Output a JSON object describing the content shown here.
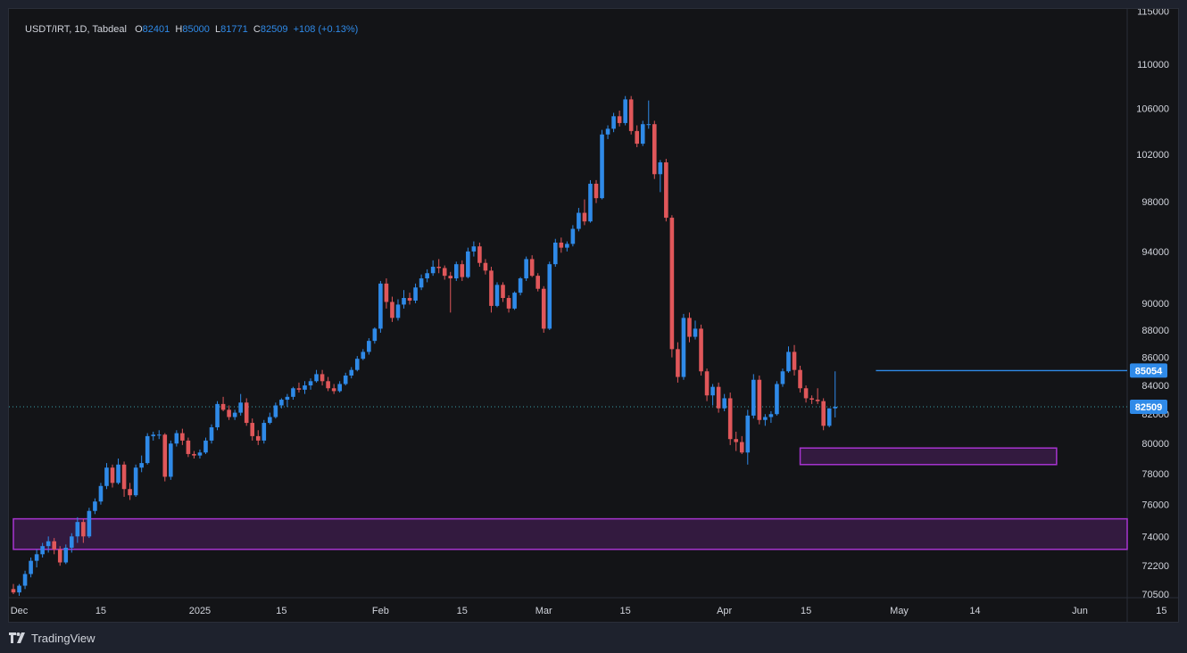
{
  "legend": {
    "symbol": "USDT/IRT, 1D, Tabdeal",
    "open_label": "O",
    "open": "82401",
    "high_label": "H",
    "high": "85000",
    "low_label": "L",
    "low": "81771",
    "close_label": "C",
    "close": "82509",
    "change": "+108 (+0.13%)"
  },
  "brand": {
    "name": "TradingView"
  },
  "colors": {
    "up": "#2f8ae8",
    "down": "#e0575a",
    "zone": "#a734d0",
    "line": "#2f8ae8",
    "background": "#131417"
  },
  "chart_data": {
    "type": "candlestick",
    "y_axis": {
      "scale": "log",
      "ticks": [
        70500,
        72200,
        74000,
        76000,
        78000,
        80000,
        82000,
        84000,
        86000,
        88000,
        90000,
        94000,
        98000,
        102000,
        106000,
        110000,
        115000
      ]
    },
    "x_axis": {
      "labels": [
        "Dec",
        "15",
        "2025",
        "15",
        "Feb",
        "15",
        "Mar",
        "15",
        "Apr",
        "15",
        "May",
        "14",
        "Jun",
        "15"
      ]
    },
    "price_labels": [
      {
        "value": 85054,
        "text": "85054"
      },
      {
        "value": 82509,
        "text": "82509"
      }
    ],
    "horizontal_line": {
      "value": 85054,
      "from_date": "2025-04-27"
    },
    "last_price_line": {
      "value": 82509
    },
    "zones": [
      {
        "name": "lower-demand-zone",
        "low": 73200,
        "high": 75100,
        "from_date": "2024-11-30",
        "to_date": "2025-06-25"
      },
      {
        "name": "upper-demand-zone",
        "low": 78600,
        "high": 79700,
        "from_date": "2025-04-14",
        "to_date": "2025-05-28"
      }
    ],
    "series": [
      {
        "start_date": "2024-11-30",
        "interval": "1D",
        "ohlc": [
          [
            70800,
            71100,
            70500,
            70600
          ],
          [
            70600,
            71100,
            70400,
            71000
          ],
          [
            71000,
            71900,
            70800,
            71700
          ],
          [
            71700,
            72700,
            71500,
            72500
          ],
          [
            72500,
            73200,
            72100,
            72900
          ],
          [
            72900,
            73600,
            72700,
            73400
          ],
          [
            73400,
            74000,
            73000,
            73700
          ],
          [
            73700,
            73900,
            72900,
            73200
          ],
          [
            73200,
            73400,
            72200,
            72400
          ],
          [
            72400,
            73500,
            72300,
            73300
          ],
          [
            73300,
            74200,
            73000,
            74000
          ],
          [
            74000,
            75200,
            73600,
            74900
          ],
          [
            74900,
            75100,
            73600,
            74000
          ],
          [
            74000,
            75800,
            73900,
            75600
          ],
          [
            75600,
            76400,
            75400,
            76200
          ],
          [
            76200,
            77400,
            76000,
            77200
          ],
          [
            77200,
            78700,
            77000,
            78400
          ],
          [
            78400,
            78600,
            77100,
            77400
          ],
          [
            77400,
            79000,
            77300,
            78600
          ],
          [
            78600,
            78800,
            76500,
            77000
          ],
          [
            77000,
            77400,
            76300,
            76600
          ],
          [
            76600,
            78600,
            76500,
            78400
          ],
          [
            78400,
            79200,
            78100,
            78700
          ],
          [
            78700,
            80700,
            78600,
            80500
          ],
          [
            80500,
            80800,
            80200,
            80600
          ],
          [
            80600,
            80900,
            80300,
            80600
          ],
          [
            80600,
            80700,
            77500,
            77800
          ],
          [
            77800,
            80200,
            77600,
            80000
          ],
          [
            80000,
            80900,
            79800,
            80700
          ],
          [
            80700,
            81000,
            79900,
            80200
          ],
          [
            80200,
            80400,
            79100,
            79300
          ],
          [
            79300,
            79500,
            79000,
            79200
          ],
          [
            79200,
            79600,
            79000,
            79400
          ],
          [
            79400,
            80400,
            79300,
            80200
          ],
          [
            80200,
            81300,
            80000,
            81100
          ],
          [
            81100,
            82900,
            80900,
            82700
          ],
          [
            82700,
            83200,
            82200,
            82300
          ],
          [
            82300,
            82600,
            81600,
            81800
          ],
          [
            81800,
            82300,
            81600,
            82100
          ],
          [
            82100,
            83400,
            81900,
            82800
          ],
          [
            82800,
            83100,
            81200,
            81400
          ],
          [
            81400,
            81700,
            80200,
            80500
          ],
          [
            80500,
            80900,
            79900,
            80200
          ],
          [
            80200,
            81600,
            80000,
            81400
          ],
          [
            81400,
            82100,
            81300,
            81800
          ],
          [
            81800,
            82800,
            81700,
            82600
          ],
          [
            82600,
            83100,
            82400,
            83000
          ],
          [
            83000,
            83400,
            82500,
            83200
          ],
          [
            83200,
            83900,
            83000,
            83800
          ],
          [
            83800,
            84200,
            83500,
            83700
          ],
          [
            83700,
            84300,
            83400,
            84000
          ],
          [
            84000,
            84500,
            83700,
            84300
          ],
          [
            84300,
            85100,
            84200,
            84800
          ],
          [
            84800,
            85100,
            84000,
            84300
          ],
          [
            84300,
            84600,
            83600,
            83800
          ],
          [
            83800,
            84100,
            83400,
            83600
          ],
          [
            83600,
            84300,
            83500,
            84100
          ],
          [
            84100,
            84900,
            84000,
            84700
          ],
          [
            84700,
            85300,
            84500,
            85100
          ],
          [
            85100,
            86100,
            85000,
            85900
          ],
          [
            85900,
            86600,
            85800,
            86400
          ],
          [
            86400,
            87400,
            86200,
            87200
          ],
          [
            87200,
            88200,
            87000,
            88100
          ],
          [
            88100,
            91700,
            87800,
            91500
          ],
          [
            91500,
            91900,
            89600,
            90100
          ],
          [
            90100,
            90500,
            88600,
            88900
          ],
          [
            88900,
            90300,
            88700,
            89900
          ],
          [
            89900,
            91000,
            89600,
            90400
          ],
          [
            90400,
            90800,
            89900,
            90200
          ],
          [
            90200,
            91500,
            90000,
            91200
          ],
          [
            91200,
            92200,
            91000,
            91900
          ],
          [
            91900,
            92600,
            91600,
            92300
          ],
          [
            92300,
            93300,
            92100,
            92800
          ],
          [
            92800,
            93400,
            92300,
            92700
          ],
          [
            92700,
            92900,
            91800,
            92100
          ],
          [
            92100,
            92400,
            89300,
            91900
          ],
          [
            91900,
            93200,
            91700,
            93000
          ],
          [
            93000,
            93300,
            91700,
            92000
          ],
          [
            92000,
            94300,
            91900,
            94000
          ],
          [
            94000,
            94800,
            93600,
            94400
          ],
          [
            94400,
            94700,
            92800,
            93100
          ],
          [
            93100,
            93400,
            92200,
            92500
          ],
          [
            92500,
            92800,
            89300,
            89800
          ],
          [
            89800,
            91600,
            89700,
            91400
          ],
          [
            91400,
            91600,
            90100,
            90400
          ],
          [
            90400,
            90600,
            89300,
            89600
          ],
          [
            89600,
            90900,
            89500,
            90800
          ],
          [
            90800,
            92000,
            90600,
            91900
          ],
          [
            91900,
            93600,
            91700,
            93400
          ],
          [
            93400,
            93700,
            92000,
            92100
          ],
          [
            92100,
            92300,
            90900,
            91100
          ],
          [
            91100,
            91300,
            87800,
            88100
          ],
          [
            88100,
            93200,
            88000,
            93000
          ],
          [
            93000,
            95000,
            92800,
            94700
          ],
          [
            94700,
            95100,
            93900,
            94300
          ],
          [
            94300,
            94800,
            94000,
            94600
          ],
          [
            94600,
            96100,
            94400,
            95800
          ],
          [
            95800,
            97500,
            95600,
            97100
          ],
          [
            97100,
            98200,
            96100,
            96400
          ],
          [
            96400,
            99800,
            96300,
            99500
          ],
          [
            99500,
            99800,
            97900,
            98300
          ],
          [
            98300,
            104100,
            98200,
            103700
          ],
          [
            103700,
            104500,
            103300,
            104200
          ],
          [
            104200,
            105600,
            103900,
            105300
          ],
          [
            105300,
            105800,
            104400,
            104700
          ],
          [
            104700,
            107100,
            104500,
            106800
          ],
          [
            106800,
            107100,
            103700,
            104000
          ],
          [
            104000,
            104500,
            102600,
            102900
          ],
          [
            102900,
            104900,
            102700,
            104600
          ],
          [
            104600,
            106700,
            104200,
            104600
          ],
          [
            104600,
            104900,
            99900,
            100300
          ],
          [
            100300,
            101500,
            98800,
            101300
          ],
          [
            101300,
            101600,
            96400,
            96700
          ],
          [
            96700,
            96900,
            86000,
            86600
          ],
          [
            86600,
            87100,
            84200,
            84600
          ],
          [
            84600,
            89200,
            84400,
            88900
          ],
          [
            88900,
            89300,
            87100,
            87500
          ],
          [
            87500,
            88700,
            87300,
            88100
          ],
          [
            88100,
            88400,
            84700,
            85000
          ],
          [
            85000,
            85200,
            82900,
            83300
          ],
          [
            83300,
            84100,
            82600,
            83900
          ],
          [
            83900,
            84200,
            82100,
            82400
          ],
          [
            82400,
            83400,
            82200,
            83100
          ],
          [
            83100,
            83500,
            79900,
            80300
          ],
          [
            80300,
            80800,
            79500,
            80100
          ],
          [
            80100,
            80500,
            79300,
            79400
          ],
          [
            79400,
            82300,
            78600,
            81900
          ],
          [
            81900,
            84800,
            81700,
            84400
          ],
          [
            84400,
            84700,
            81300,
            81600
          ],
          [
            81600,
            82000,
            81200,
            81800
          ],
          [
            81800,
            82200,
            81400,
            82000
          ],
          [
            82000,
            84300,
            81900,
            84100
          ],
          [
            84100,
            85200,
            83900,
            85000
          ],
          [
            85000,
            86800,
            84900,
            86400
          ],
          [
            86400,
            86900,
            84700,
            85100
          ],
          [
            85100,
            85400,
            83500,
            83800
          ],
          [
            83800,
            84000,
            82800,
            83100
          ],
          [
            83100,
            83300,
            82700,
            83000
          ],
          [
            83000,
            83800,
            82700,
            82900
          ],
          [
            82900,
            83100,
            80900,
            81200
          ],
          [
            81200,
            82400,
            81100,
            82401
          ],
          [
            82401,
            85000,
            81771,
            82509
          ]
        ]
      }
    ]
  }
}
